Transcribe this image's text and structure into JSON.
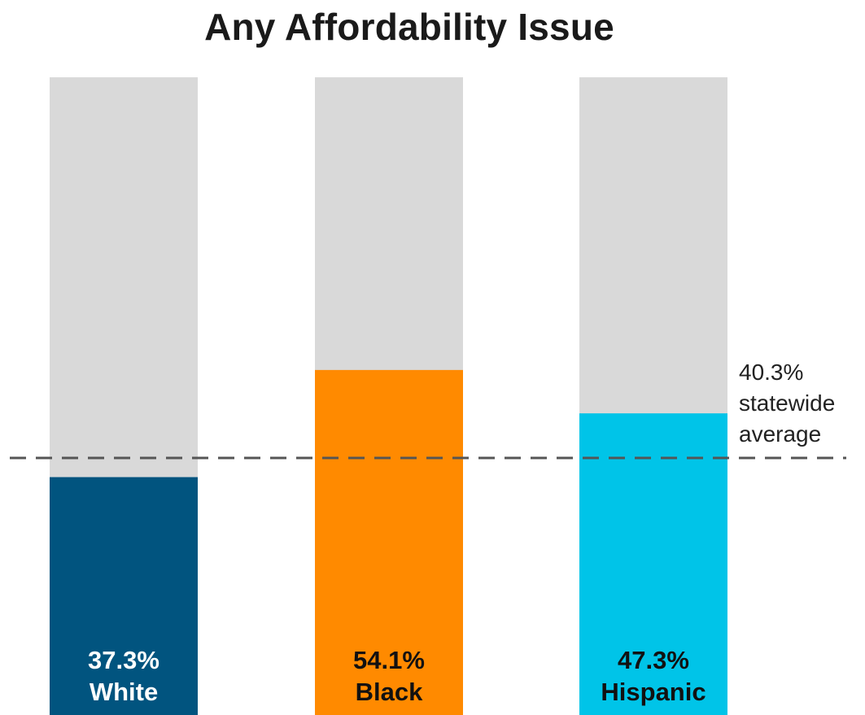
{
  "chart_data": {
    "type": "bar",
    "title": "Any Affordability Issue",
    "xlabel": "",
    "ylabel": "",
    "ylim": [
      0,
      100
    ],
    "categories": [
      "White",
      "Black",
      "Hispanic"
    ],
    "values": [
      37.3,
      54.1,
      47.3
    ],
    "value_labels": [
      "37.3%",
      "54.1%",
      "47.3%"
    ],
    "colors": [
      "#01547f",
      "#ff8a00",
      "#00c4e8"
    ],
    "label_colors": [
      "#ffffff",
      "#111111",
      "#111111"
    ],
    "background_color": "#d9d9d9",
    "grid": false,
    "reference_line": {
      "value": 40.3,
      "style": "dashed",
      "color": "#555555",
      "label_lines": [
        "40.3%",
        "statewide",
        "average"
      ]
    }
  }
}
